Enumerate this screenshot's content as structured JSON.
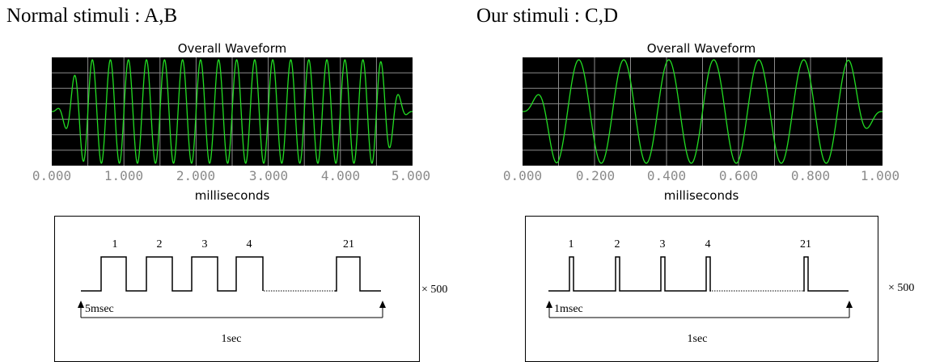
{
  "panels": [
    {
      "heading": "Normal stimuli : A,B",
      "waveform": {
        "title": "Overall Waveform",
        "x_ticks": [
          "0.000",
          "1.000",
          "2.000",
          "3.000",
          "4.000",
          "5.000"
        ],
        "x_label": "milliseconds",
        "cycles": 20,
        "wave_color": "#22dd22",
        "grid_color": "#8c8c8c"
      },
      "timing": {
        "pulse_labels": [
          "1",
          "2",
          "3",
          "4",
          "21"
        ],
        "pulse_width_label": "5msec",
        "period_label": "1sec",
        "repeat_label": "× 500"
      }
    },
    {
      "heading": "Our stimuli : C,D",
      "waveform": {
        "title": "Overall Waveform",
        "x_ticks": [
          "0.000",
          "0.200",
          "0.400",
          "0.600",
          "0.800",
          "1.000"
        ],
        "x_label": "milliseconds",
        "cycles": 8,
        "wave_color": "#22dd22",
        "grid_color": "#8c8c8c"
      },
      "timing": {
        "pulse_labels": [
          "1",
          "2",
          "3",
          "4",
          "21"
        ],
        "pulse_width_label": "1msec",
        "period_label": "1sec",
        "repeat_label": "× 500"
      }
    }
  ]
}
